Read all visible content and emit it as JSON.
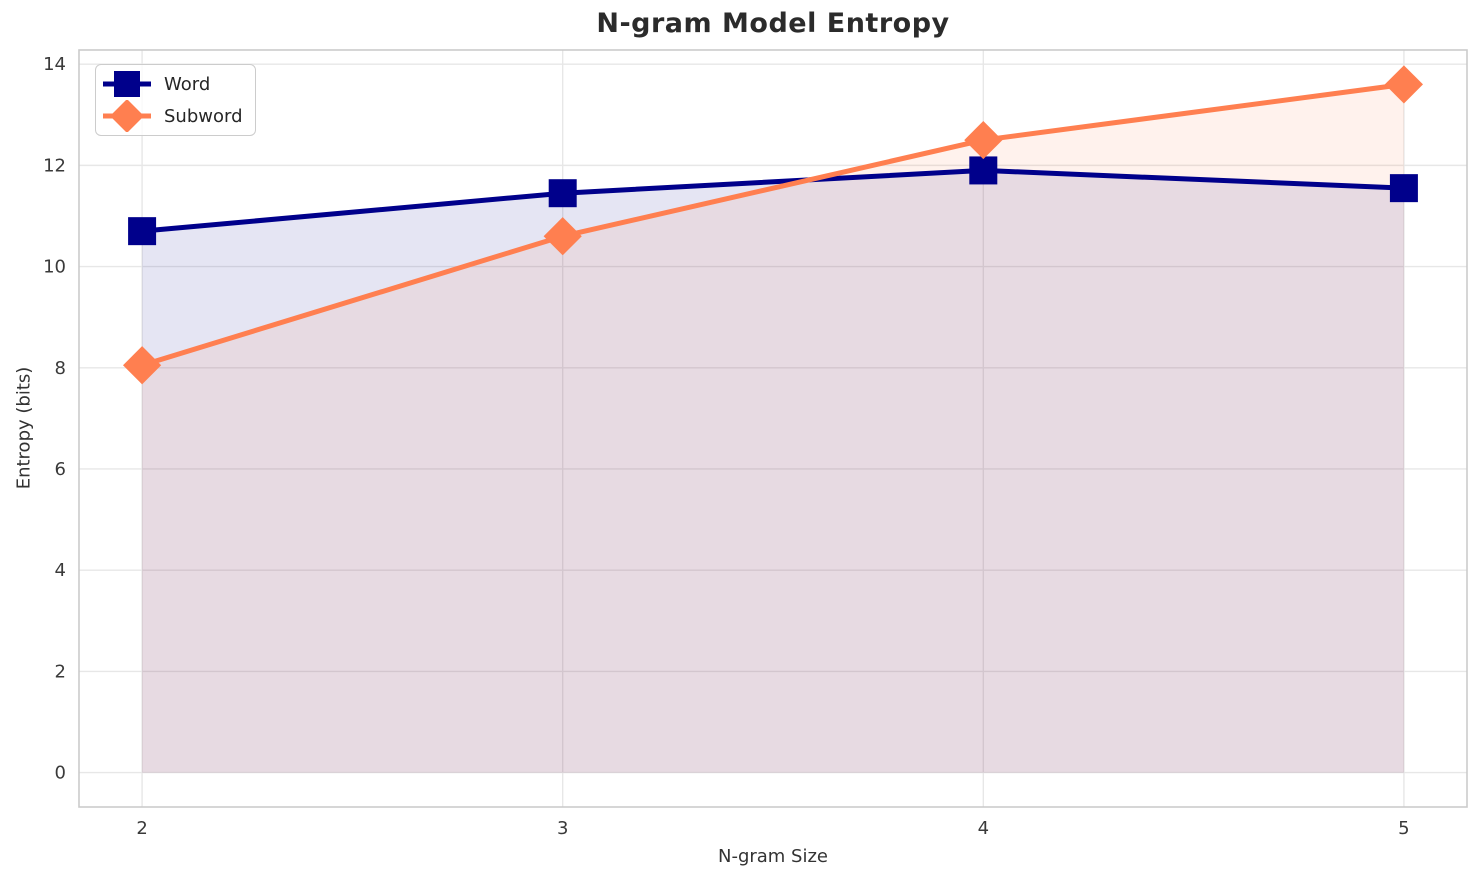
{
  "figure": {
    "background": "#ffffff"
  },
  "chart_data": {
    "type": "line",
    "title": "N-gram Model Entropy",
    "xlabel": "N-gram Size",
    "ylabel": "Entropy (bits)",
    "x": [
      2,
      3,
      4,
      5
    ],
    "series": [
      {
        "name": "Word",
        "values": [
          10.7,
          11.45,
          11.9,
          11.55
        ],
        "color": "#00008B",
        "marker": "square"
      },
      {
        "name": "Subword",
        "values": [
          8.05,
          10.6,
          12.5,
          13.6
        ],
        "color": "#FF7F50",
        "marker": "diamond"
      }
    ],
    "fill_to_zero": true,
    "fill_opacity": 0.1,
    "line_width": 5,
    "xlim": [
      1.85,
      5.15
    ],
    "ylim": [
      -0.68,
      14.28
    ],
    "xticks": [
      2,
      3,
      4,
      5
    ],
    "yticks": [
      0,
      2,
      4,
      6,
      8,
      10,
      12,
      14
    ],
    "grid": true,
    "legend_position": "upper-left",
    "colors": {
      "grid": "#e7e7e7",
      "spine": "#cbcbcb",
      "tick_label": "#3a3a3a",
      "title": "#2b2b2b",
      "axis_label": "#333333"
    }
  }
}
